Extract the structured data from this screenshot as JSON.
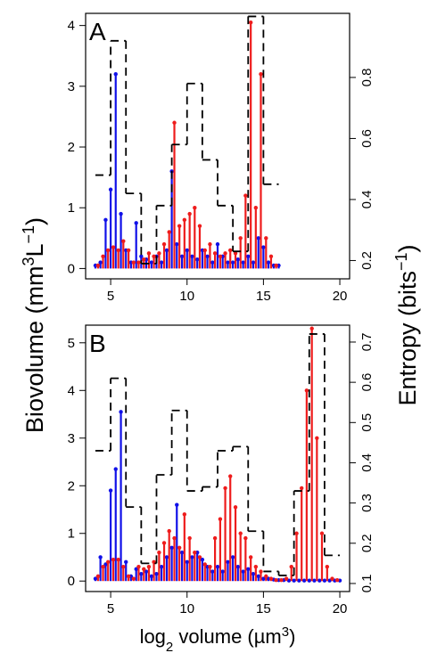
{
  "figure": {
    "ylabel": [
      "Biovolume (mm",
      "3",
      "L",
      "−1",
      ")"
    ],
    "y2label": [
      "Entropy (bits",
      "−1",
      ")"
    ],
    "xlabel": [
      "log",
      "2",
      " volume (µm",
      "3",
      ")"
    ]
  },
  "chart_data": [
    {
      "type": "lollipop",
      "label": "A",
      "xlim": [
        3.36,
        20.64
      ],
      "xticks": [
        5,
        10,
        15,
        20
      ],
      "ylim": [
        -0.17,
        4.2
      ],
      "yticks": [
        0,
        1,
        2,
        3,
        4
      ],
      "y2lim": [
        0.14,
        1.01
      ],
      "y2ticks": [
        0.2,
        0.4,
        0.6,
        0.8
      ],
      "series": [
        {
          "color": "#1010e8",
          "x": [
            4,
            4.33,
            4.67,
            5,
            5.33,
            5.67,
            6,
            6.33,
            6.67,
            7,
            7.33,
            7.67,
            8,
            8.33,
            8.67,
            9,
            9.33,
            9.67,
            10,
            10.33,
            10.67,
            11,
            11.33,
            11.67,
            12,
            12.33,
            12.67,
            13,
            13.33,
            13.67,
            14,
            14.33,
            14.67,
            15,
            15.33,
            15.67,
            16
          ],
          "values": [
            0.05,
            0.1,
            0.8,
            1.3,
            3.2,
            0.9,
            0.3,
            0.1,
            0.75,
            0.2,
            0.15,
            0.1,
            0.2,
            0.1,
            0.3,
            1.6,
            0.4,
            0.2,
            0.3,
            0.2,
            0.15,
            0.3,
            0.2,
            0.1,
            0.4,
            0.2,
            0.1,
            0.1,
            0.15,
            0.1,
            0.2,
            0.1,
            0.5,
            0.35,
            0.1,
            0.05,
            0.05
          ]
        },
        {
          "color": "#ee1c1c",
          "x": [
            4.17,
            4.5,
            4.83,
            5.17,
            5.5,
            5.83,
            6.17,
            6.5,
            6.83,
            7.17,
            7.5,
            7.83,
            8.17,
            8.5,
            8.83,
            9.17,
            9.5,
            9.83,
            10.17,
            10.5,
            10.83,
            11.17,
            11.5,
            11.83,
            12.17,
            12.5,
            12.83,
            13.17,
            13.5,
            13.83,
            14.17,
            14.5,
            14.83,
            15.17,
            15.5,
            15.83
          ],
          "values": [
            0.05,
            0.2,
            0.3,
            0.35,
            0.3,
            0.45,
            0.3,
            0.1,
            0.1,
            0.15,
            0.25,
            0.2,
            0.25,
            0.4,
            0.6,
            2.4,
            0.7,
            0.8,
            0.9,
            1.0,
            0.7,
            0.3,
            0.4,
            0.25,
            0.2,
            0.25,
            0.3,
            0.25,
            0.5,
            1.2,
            4.05,
            1.0,
            3.2,
            0.5,
            0.2,
            0.05
          ]
        },
        {
          "type": "step",
          "axis": "y2",
          "color": "#000000",
          "bins": [
            4,
            5,
            6,
            7,
            8,
            9,
            10,
            11,
            12,
            13,
            14,
            15,
            16
          ],
          "values": [
            0.48,
            0.92,
            0.42,
            0.19,
            0.38,
            0.58,
            0.78,
            0.53,
            0.38,
            0.23,
            1.0,
            0.45
          ]
        }
      ]
    },
    {
      "type": "lollipop",
      "label": "B",
      "xlim": [
        3.36,
        20.64
      ],
      "xticks": [
        5,
        10,
        15,
        20
      ],
      "ylim": [
        -0.22,
        5.37
      ],
      "yticks": [
        0,
        1,
        2,
        3,
        4,
        5
      ],
      "y2lim": [
        0.08,
        0.742
      ],
      "y2ticks": [
        0.1,
        0.2,
        0.3,
        0.4,
        0.5,
        0.6,
        0.7
      ],
      "series": [
        {
          "color": "#1010e8",
          "x": [
            4,
            4.33,
            4.67,
            5,
            5.33,
            5.67,
            6,
            6.33,
            6.67,
            7,
            7.33,
            7.67,
            8,
            8.33,
            8.67,
            9,
            9.33,
            9.67,
            10,
            10.33,
            10.67,
            11,
            11.33,
            11.67,
            12,
            12.33,
            12.67,
            13,
            13.33,
            13.67,
            14,
            14.33,
            14.67,
            15,
            15.33,
            15.67,
            16,
            16.33,
            16.67,
            17,
            17.33,
            17.67,
            18,
            18.33,
            18.67,
            19,
            19.33,
            19.67,
            20
          ],
          "values": [
            0.05,
            0.5,
            0.35,
            1.9,
            2.35,
            3.55,
            0.4,
            0.1,
            0.25,
            0.15,
            0.2,
            0.1,
            0.15,
            0.3,
            0.5,
            0.7,
            1.6,
            0.6,
            0.4,
            0.5,
            0.6,
            0.45,
            0.3,
            0.2,
            0.3,
            0.2,
            0.4,
            0.5,
            0.3,
            0.2,
            0.25,
            0.15,
            0.1,
            0.05,
            0.05,
            0.03,
            0.02,
            0.02,
            0.01,
            0.01,
            0.01,
            0.01,
            0.01,
            0.01,
            0.01,
            0.01,
            0.01,
            0.01,
            0.01
          ]
        },
        {
          "color": "#ee1c1c",
          "x": [
            4.17,
            4.5,
            4.83,
            5.17,
            5.5,
            5.83,
            6.17,
            6.5,
            6.83,
            7.17,
            7.5,
            7.83,
            8.17,
            8.5,
            8.83,
            9.17,
            9.5,
            9.83,
            10.17,
            10.5,
            10.83,
            11.17,
            11.5,
            11.83,
            12.17,
            12.5,
            12.83,
            13.17,
            13.5,
            13.83,
            14.17,
            14.5,
            14.83,
            15.17,
            15.5,
            15.83,
            16.17,
            16.5,
            16.83,
            17.17,
            17.5,
            17.83,
            18.17,
            18.5,
            18.83,
            19.17,
            19.5,
            19.83
          ],
          "values": [
            0.1,
            0.3,
            0.4,
            0.45,
            0.45,
            0.3,
            0.1,
            0.05,
            0.3,
            0.25,
            0.3,
            0.4,
            0.6,
            0.8,
            1.05,
            0.9,
            0.7,
            1.4,
            0.9,
            0.6,
            0.5,
            0.35,
            0.3,
            0.9,
            1.3,
            1.95,
            2.2,
            1.55,
            1.0,
            0.9,
            0.5,
            0.3,
            0.2,
            0.1,
            0.05,
            0.02,
            0.02,
            0.05,
            0.3,
            1.0,
            1.95,
            4.0,
            5.3,
            3.0,
            1.0,
            0.3,
            0.05,
            0.02
          ]
        },
        {
          "type": "step",
          "axis": "y2",
          "color": "#000000",
          "bins": [
            4,
            5,
            6,
            7,
            8,
            9,
            10,
            11,
            12,
            13,
            14,
            15,
            16,
            17,
            18,
            19,
            20
          ],
          "values": [
            0.43,
            0.61,
            0.29,
            0.15,
            0.37,
            0.53,
            0.33,
            0.34,
            0.43,
            0.44,
            0.23,
            0.13,
            0.12,
            0.33,
            0.72,
            0.17
          ]
        }
      ]
    }
  ]
}
